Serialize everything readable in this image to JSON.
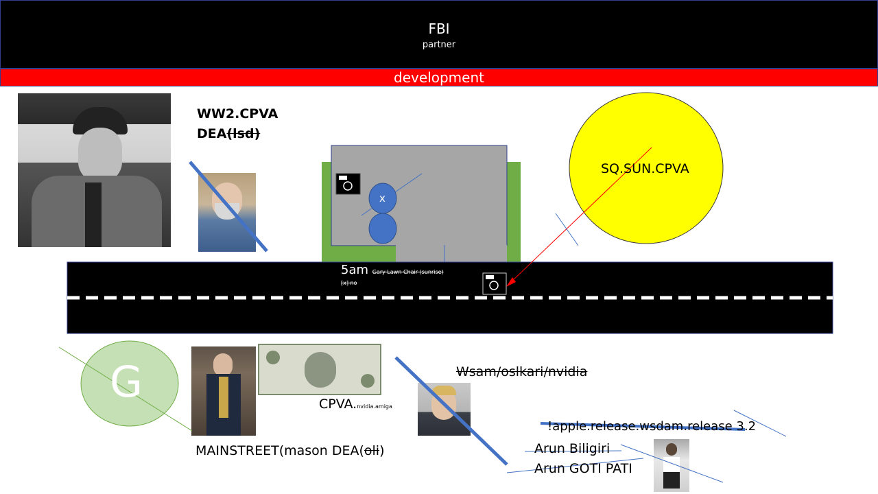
{
  "header": {
    "title": "FBI",
    "subtitle": "partner"
  },
  "banner": {
    "label": "development"
  },
  "labels": {
    "ww2": "WW2.CPVA",
    "dea_prefix": "DEA",
    "dea_struck": "(lsd)",
    "sun": "SQ.SUN.CPVA",
    "road_5am": "5am",
    "road_chair": "Gary Lawn Chair (sunrise)",
    "road_x": "[x] no",
    "pin_x": "x",
    "g_circle": "G",
    "cpva": "CPVA.",
    "cpva_small": "nvidia.amiga",
    "mainstreet_prefix": "MAINSTREET(mason DEA(",
    "mainstreet_struck": "oli",
    "mainstreet_suffix": ")",
    "wsam": "Wsam/oslkari/nvidia",
    "apple": "!apple.release.wsdam.release 3.2",
    "arun1": "Arun Biligiri",
    "arun2": "Arun GOTI PATI"
  },
  "colors": {
    "header_bg": "#000000",
    "banner_bg": "#ff0000",
    "sun_fill": "#ffff00",
    "house_green": "#70ad47",
    "house_grey": "#a6a6a6",
    "pin_blue": "#4472c4",
    "g_fill": "#c5e0b4",
    "strike_blue": "#4472c4"
  },
  "icons": [
    "camera-icon",
    "camera-icon",
    "portrait-photo",
    "dollar-bill-photo"
  ]
}
